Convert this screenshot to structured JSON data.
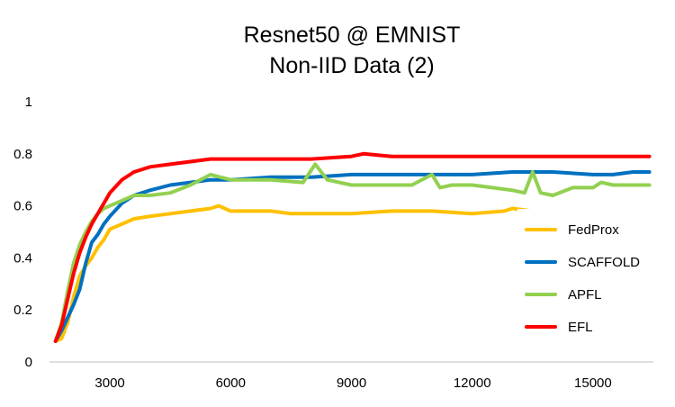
{
  "chart_data": {
    "type": "line",
    "title": [
      "Resnet50 @ EMNIST",
      "Non-IID Data (2)"
    ],
    "xlabel": "",
    "ylabel": "",
    "xlim": [
      1500,
      16500
    ],
    "ylim": [
      0,
      1
    ],
    "x_ticks": [
      3000,
      6000,
      9000,
      12000,
      15000
    ],
    "y_ticks": [
      0,
      0.2,
      0.4,
      0.6,
      0.8,
      1
    ],
    "y_tick_labels": [
      "0",
      "0.2",
      "0.4",
      "0.6",
      "0.8",
      "1"
    ],
    "grid": false,
    "legend_position": "right",
    "series": [
      {
        "name": "FedProx",
        "color": "#FFC000",
        "x": [
          1650,
          1800,
          1950,
          2100,
          2250,
          2400,
          2550,
          2700,
          2850,
          3000,
          3300,
          3600,
          4000,
          4500,
          5000,
          5500,
          5700,
          6000,
          7000,
          7500,
          8000,
          9000,
          10000,
          11000,
          12000,
          12800,
          13000,
          14000,
          15000,
          16000,
          16400
        ],
        "y": [
          0.08,
          0.09,
          0.15,
          0.25,
          0.33,
          0.37,
          0.4,
          0.44,
          0.47,
          0.51,
          0.53,
          0.55,
          0.56,
          0.57,
          0.58,
          0.59,
          0.6,
          0.58,
          0.58,
          0.57,
          0.57,
          0.57,
          0.58,
          0.58,
          0.57,
          0.58,
          0.59,
          0.57,
          0.57,
          0.57,
          0.57
        ]
      },
      {
        "name": "SCAFFOLD",
        "color": "#0070C0",
        "x": [
          1650,
          1800,
          1950,
          2100,
          2250,
          2400,
          2550,
          2700,
          2850,
          3000,
          3300,
          3600,
          4000,
          4500,
          5000,
          5500,
          6000,
          7000,
          8000,
          9000,
          10000,
          11000,
          12000,
          13000,
          14000,
          15000,
          15500,
          16000,
          16400
        ],
        "y": [
          0.08,
          0.12,
          0.17,
          0.22,
          0.28,
          0.38,
          0.46,
          0.49,
          0.53,
          0.56,
          0.61,
          0.64,
          0.66,
          0.68,
          0.69,
          0.7,
          0.7,
          0.71,
          0.71,
          0.72,
          0.72,
          0.72,
          0.72,
          0.73,
          0.73,
          0.72,
          0.72,
          0.73,
          0.73
        ]
      },
      {
        "name": "APFL",
        "color": "#92D050",
        "x": [
          1650,
          1800,
          1950,
          2100,
          2250,
          2400,
          2550,
          2700,
          2850,
          3000,
          3300,
          3600,
          4000,
          4500,
          5000,
          5500,
          6000,
          7000,
          7800,
          8100,
          8400,
          9000,
          10000,
          10500,
          11000,
          11200,
          11500,
          12000,
          12500,
          13000,
          13300,
          13500,
          13700,
          14000,
          14500,
          15000,
          15200,
          15500,
          16000,
          16400
        ],
        "y": [
          0.08,
          0.15,
          0.27,
          0.38,
          0.45,
          0.5,
          0.54,
          0.57,
          0.59,
          0.6,
          0.62,
          0.64,
          0.64,
          0.65,
          0.68,
          0.72,
          0.7,
          0.7,
          0.69,
          0.76,
          0.7,
          0.68,
          0.68,
          0.68,
          0.72,
          0.67,
          0.68,
          0.68,
          0.67,
          0.66,
          0.65,
          0.73,
          0.65,
          0.64,
          0.67,
          0.67,
          0.69,
          0.68,
          0.68,
          0.68
        ]
      },
      {
        "name": "EFL",
        "color": "#FF0000",
        "x": [
          1650,
          1800,
          1950,
          2100,
          2250,
          2400,
          2550,
          2700,
          2850,
          3000,
          3300,
          3600,
          4000,
          4500,
          5000,
          5500,
          6000,
          7000,
          8000,
          9000,
          9300,
          10000,
          11000,
          12000,
          13000,
          14000,
          15000,
          16000,
          16400
        ],
        "y": [
          0.08,
          0.14,
          0.24,
          0.34,
          0.42,
          0.48,
          0.53,
          0.57,
          0.61,
          0.65,
          0.7,
          0.73,
          0.75,
          0.76,
          0.77,
          0.78,
          0.78,
          0.78,
          0.78,
          0.79,
          0.8,
          0.79,
          0.79,
          0.79,
          0.79,
          0.79,
          0.79,
          0.79,
          0.79
        ]
      }
    ]
  }
}
